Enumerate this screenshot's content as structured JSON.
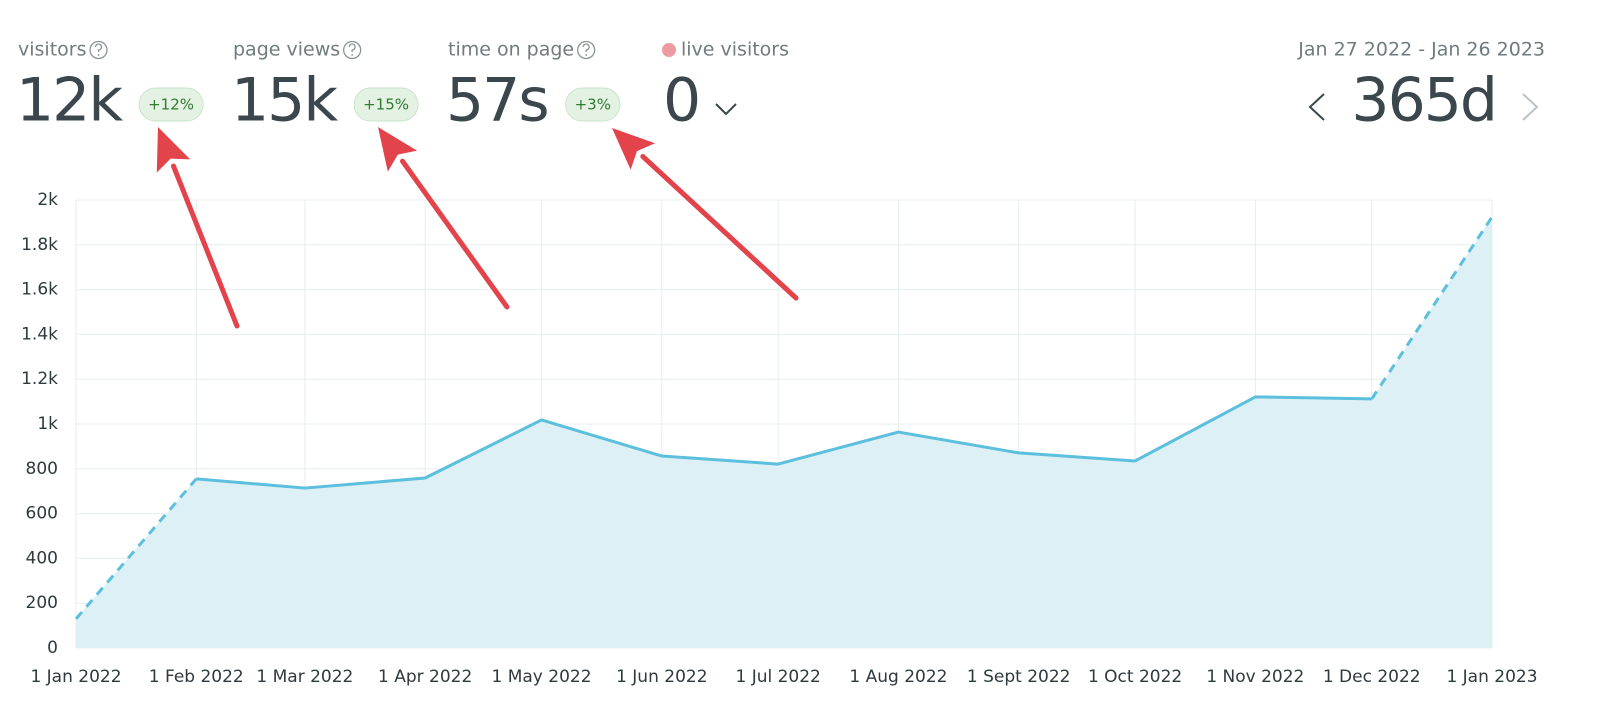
{
  "header": {
    "stats": [
      {
        "label": "visitors",
        "value": "12k",
        "change": "+12%"
      },
      {
        "label": "page views",
        "value": "15k",
        "change": "+15%"
      },
      {
        "label": "time on page",
        "value": "57s",
        "change": "+3%"
      }
    ],
    "live": {
      "label": "live visitors",
      "value": "0"
    },
    "date_range": "Jan 27 2022 - Jan 26 2023",
    "period": "365d"
  },
  "chart_data": {
    "type": "area",
    "x": [
      "2022-01-01",
      "2022-02-01",
      "2022-03-01",
      "2022-04-01",
      "2022-05-01",
      "2022-06-01",
      "2022-07-01",
      "2022-08-01",
      "2022-09-01",
      "2022-10-01",
      "2022-11-01",
      "2022-12-01",
      "2023-01-01"
    ],
    "values": [
      130,
      755,
      714,
      759,
      1018,
      857,
      821,
      964,
      871,
      835,
      1121,
      1112,
      1924
    ],
    "color": "#5bbfdd",
    "fill_color": "#dcf0f5",
    "end_segments": "dashed",
    "xlim": [
      "2022-01-01",
      "2023-01-01"
    ],
    "xticks": [
      {
        "value": "2022-01-01",
        "label": "1 Jan 2022"
      },
      {
        "value": "2022-02-01",
        "label": "1 Feb 2022"
      },
      {
        "value": "2022-03-01",
        "label": "1 Mar 2022"
      },
      {
        "value": "2022-04-01",
        "label": "1 Apr 2022"
      },
      {
        "value": "2022-05-01",
        "label": "1 May 2022"
      },
      {
        "value": "2022-06-01",
        "label": "1 Jun 2022"
      },
      {
        "value": "2022-07-01",
        "label": "1 Jul 2022"
      },
      {
        "value": "2022-08-01",
        "label": "1 Aug 2022"
      },
      {
        "value": "2022-09-01",
        "label": "1 Sept 2022"
      },
      {
        "value": "2022-10-01",
        "label": "1 Oct 2022"
      },
      {
        "value": "2022-11-01",
        "label": "1 Nov 2022"
      },
      {
        "value": "2022-12-01",
        "label": "1 Dec 2022"
      },
      {
        "value": "2023-01-01",
        "label": "1 Jan 2023"
      }
    ],
    "ylim": [
      0,
      2000
    ],
    "yticks": [
      0,
      200,
      400,
      600,
      800,
      {
        "value": 1000,
        "label": "1k"
      },
      {
        "value": 1200,
        "label": "1.2k"
      },
      {
        "value": 1400,
        "label": "1.4k"
      },
      {
        "value": 1600,
        "label": "1.6k"
      },
      {
        "value": 1800,
        "label": "1.8k"
      },
      {
        "value": 2000,
        "label": "2k"
      }
    ],
    "grid": true
  }
}
